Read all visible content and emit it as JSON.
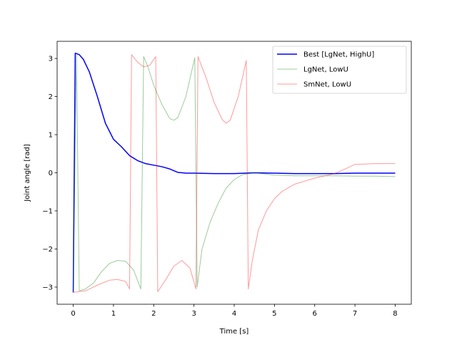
{
  "chart_data": {
    "type": "line",
    "title": "",
    "xlabel": "Time [s]",
    "ylabel": "Joint angle [rad]",
    "xlim": [
      -0.4,
      8.4
    ],
    "ylim": [
      -3.45,
      3.45
    ],
    "xticks": [
      0,
      1,
      2,
      3,
      4,
      5,
      6,
      7,
      8
    ],
    "yticks": [
      -3,
      -2,
      -1,
      0,
      1,
      2,
      3
    ],
    "xtick_labels": [
      "0",
      "1",
      "2",
      "3",
      "4",
      "5",
      "6",
      "7",
      "8"
    ],
    "ytick_labels": [
      "−3",
      "−2",
      "−1",
      "0",
      "1",
      "2",
      "3"
    ],
    "grid": false,
    "legend_position": "top-right",
    "series": [
      {
        "name": "Best [LgNet, HighU]",
        "color": "#0000ff",
        "opacity": 1.0,
        "width": 1.5,
        "points": [
          [
            0,
            -3.14
          ],
          [
            0.05,
            3.14
          ],
          [
            0.15,
            3.1
          ],
          [
            0.25,
            2.98
          ],
          [
            0.4,
            2.65
          ],
          [
            0.6,
            2.0
          ],
          [
            0.8,
            1.3
          ],
          [
            1.0,
            0.88
          ],
          [
            1.2,
            0.68
          ],
          [
            1.4,
            0.45
          ],
          [
            1.6,
            0.32
          ],
          [
            1.8,
            0.24
          ],
          [
            2.0,
            0.2
          ],
          [
            2.2,
            0.16
          ],
          [
            2.4,
            0.1
          ],
          [
            2.6,
            0.01
          ],
          [
            2.8,
            -0.01
          ],
          [
            3.0,
            -0.01
          ],
          [
            3.5,
            -0.02
          ],
          [
            4.0,
            -0.02
          ],
          [
            4.5,
            0.0
          ],
          [
            5.0,
            -0.01
          ],
          [
            5.5,
            -0.02
          ],
          [
            6.0,
            -0.02
          ],
          [
            6.5,
            -0.02
          ],
          [
            7.0,
            -0.01
          ],
          [
            7.5,
            -0.01
          ],
          [
            8.0,
            -0.01
          ]
        ]
      },
      {
        "name": "LgNet, LowU",
        "color": "#008000",
        "opacity": 0.4,
        "width": 1,
        "points": [
          [
            0,
            -3.14
          ],
          [
            0.08,
            3.1
          ],
          [
            0.15,
            -3.1
          ],
          [
            0.3,
            -3.05
          ],
          [
            0.5,
            -2.9
          ],
          [
            0.7,
            -2.6
          ],
          [
            0.9,
            -2.38
          ],
          [
            1.1,
            -2.3
          ],
          [
            1.3,
            -2.32
          ],
          [
            1.5,
            -2.55
          ],
          [
            1.68,
            -3.05
          ],
          [
            1.75,
            3.05
          ],
          [
            1.85,
            2.8
          ],
          [
            2.0,
            2.3
          ],
          [
            2.2,
            1.8
          ],
          [
            2.4,
            1.42
          ],
          [
            2.5,
            1.38
          ],
          [
            2.6,
            1.45
          ],
          [
            2.8,
            2.0
          ],
          [
            2.95,
            2.7
          ],
          [
            3.02,
            3.02
          ],
          [
            3.08,
            -3.0
          ],
          [
            3.2,
            -2.0
          ],
          [
            3.4,
            -1.3
          ],
          [
            3.6,
            -0.8
          ],
          [
            3.8,
            -0.4
          ],
          [
            4.0,
            -0.18
          ],
          [
            4.2,
            -0.05
          ],
          [
            4.5,
            0.0
          ],
          [
            5.0,
            -0.06
          ],
          [
            5.5,
            -0.08
          ],
          [
            6.0,
            -0.08
          ],
          [
            6.5,
            -0.08
          ],
          [
            7.0,
            -0.09
          ],
          [
            7.5,
            -0.09
          ],
          [
            8.0,
            -0.1
          ]
        ]
      },
      {
        "name": "SmNet, LowU",
        "color": "#ff0000",
        "opacity": 0.4,
        "width": 1,
        "points": [
          [
            0,
            -3.14
          ],
          [
            0.3,
            -3.1
          ],
          [
            0.6,
            -2.95
          ],
          [
            0.9,
            -2.82
          ],
          [
            1.1,
            -2.8
          ],
          [
            1.3,
            -2.85
          ],
          [
            1.4,
            -3.05
          ],
          [
            1.45,
            3.1
          ],
          [
            1.6,
            2.9
          ],
          [
            1.75,
            2.78
          ],
          [
            1.9,
            2.82
          ],
          [
            2.05,
            3.05
          ],
          [
            2.1,
            -3.12
          ],
          [
            2.3,
            -2.8
          ],
          [
            2.5,
            -2.45
          ],
          [
            2.7,
            -2.3
          ],
          [
            2.9,
            -2.5
          ],
          [
            3.05,
            -3.05
          ],
          [
            3.1,
            3.05
          ],
          [
            3.3,
            2.5
          ],
          [
            3.5,
            1.85
          ],
          [
            3.7,
            1.4
          ],
          [
            3.8,
            1.3
          ],
          [
            3.9,
            1.38
          ],
          [
            4.1,
            2.0
          ],
          [
            4.3,
            2.95
          ],
          [
            4.35,
            -3.05
          ],
          [
            4.45,
            -2.3
          ],
          [
            4.6,
            -1.5
          ],
          [
            4.8,
            -1.0
          ],
          [
            5.0,
            -0.68
          ],
          [
            5.2,
            -0.48
          ],
          [
            5.5,
            -0.3
          ],
          [
            6.0,
            -0.14
          ],
          [
            6.5,
            -0.02
          ],
          [
            6.8,
            0.12
          ],
          [
            7.0,
            0.22
          ],
          [
            7.5,
            0.24
          ],
          [
            8.0,
            0.24
          ]
        ]
      }
    ]
  }
}
